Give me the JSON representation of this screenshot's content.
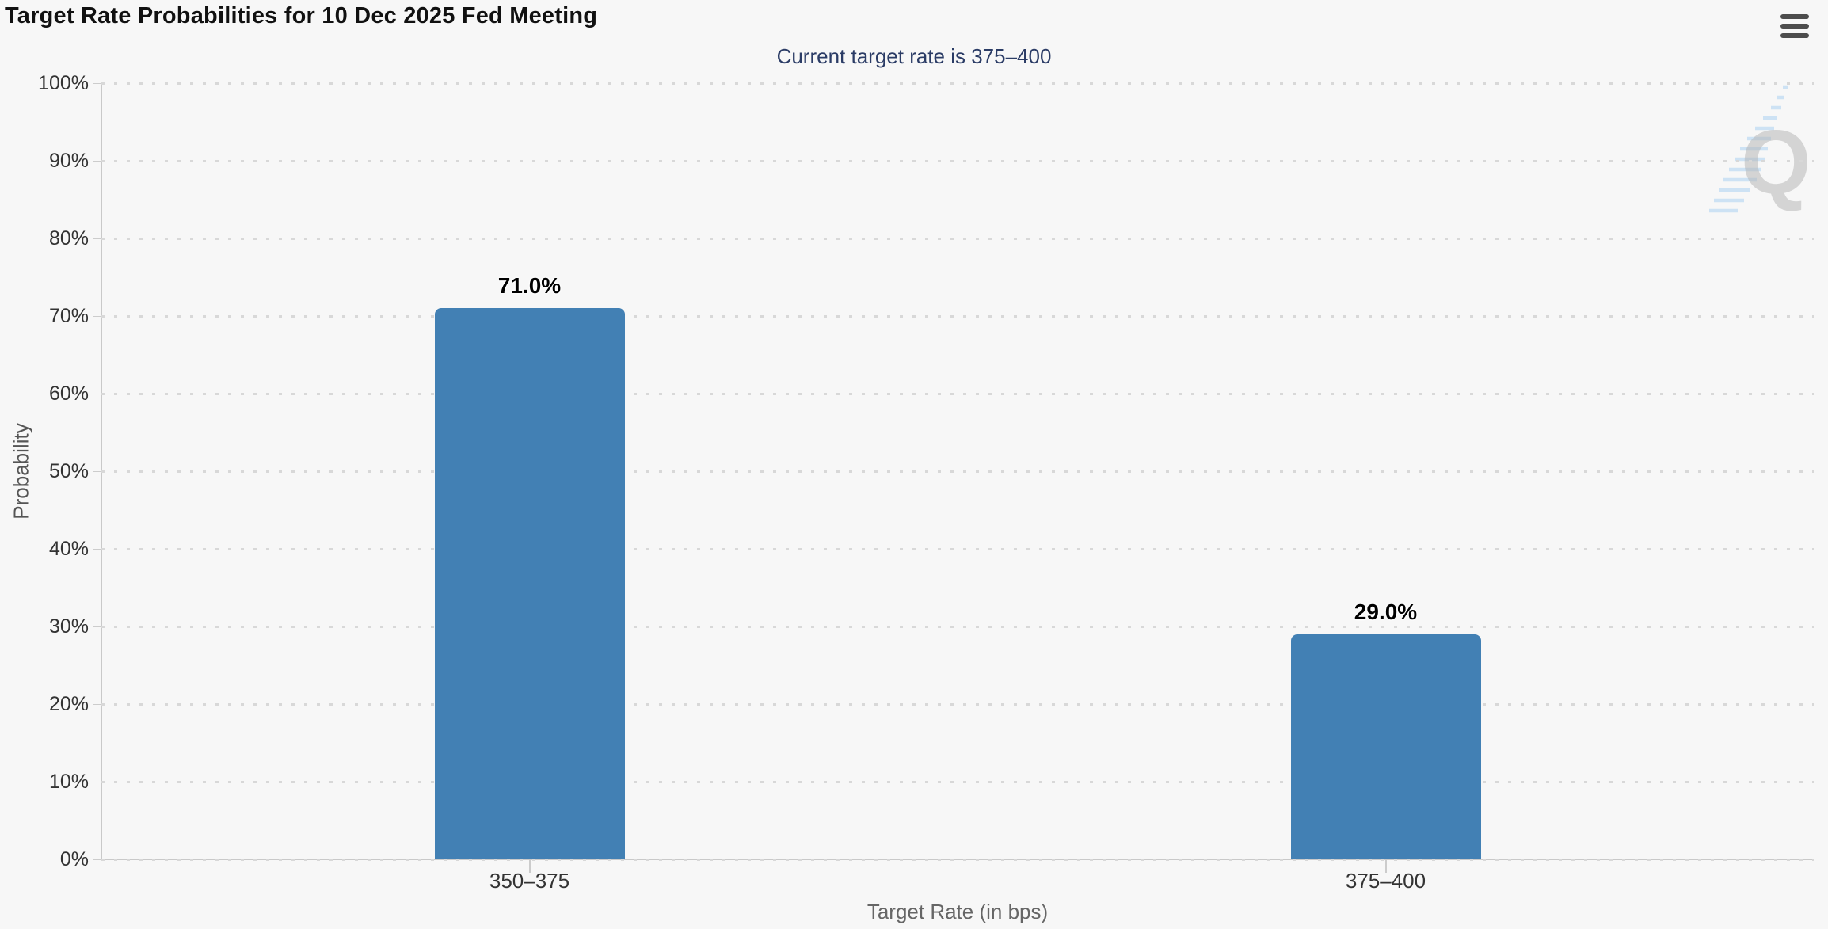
{
  "chart_data": {
    "type": "bar",
    "title": "Target Rate Probabilities for 10 Dec 2025 Fed Meeting",
    "subtitle": "Current target rate is 375–400",
    "categories": [
      "350–375",
      "375–400"
    ],
    "values": [
      71.0,
      29.0
    ],
    "value_labels": [
      "71.0%",
      "29.0%"
    ],
    "xlabel": "Target Rate (in bps)",
    "ylabel": "Probability",
    "ylim": [
      0,
      100
    ],
    "ytick_labels": [
      "100%",
      "90%",
      "80%",
      "70%",
      "60%",
      "50%",
      "40%",
      "30%",
      "20%",
      "10%",
      "0%"
    ],
    "grid": "dotted-horizontal",
    "legend": "none",
    "bar_color": "#4280b4",
    "subtitle_color": "#2b3c66",
    "watermark_letter": "Q"
  },
  "toolbar": {
    "menu_icon": "hamburger-icon"
  }
}
